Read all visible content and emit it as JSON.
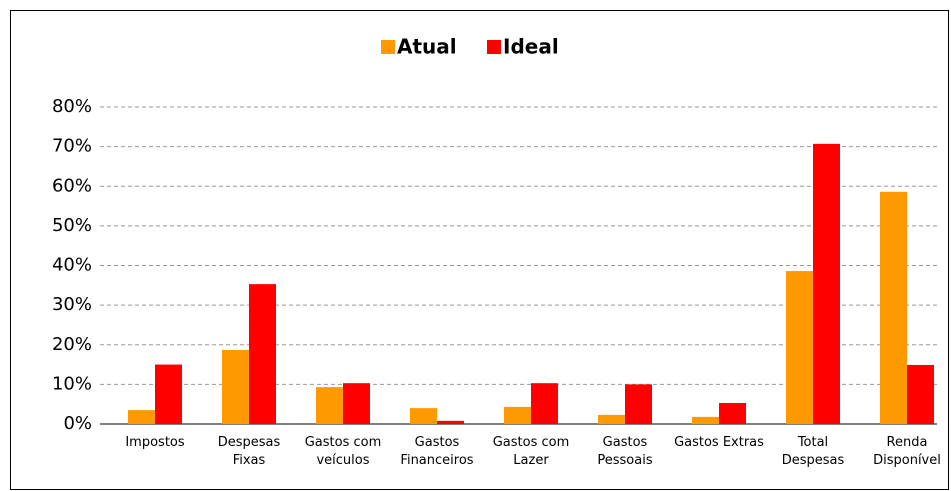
{
  "chart_data": {
    "type": "bar",
    "categories": [
      "Impostos",
      "Despesas Fixas",
      "Gastos com veículos",
      "Gastos Financeiros",
      "Gastos com Lazer",
      "Gastos Pessoais",
      "Gastos Extras",
      "Total Despesas",
      "Renda Disponível"
    ],
    "series": [
      {
        "name": "Atual",
        "color": "#ff9900",
        "values": [
          3.5,
          18.7,
          9.3,
          4,
          4.3,
          2.3,
          1.8,
          38.6,
          58.6
        ]
      },
      {
        "name": "Ideal",
        "color": "#ff0000",
        "values": [
          15,
          35.3,
          10.3,
          0.8,
          10.3,
          10,
          5.3,
          70.7,
          14.9
        ]
      }
    ],
    "ylim": [
      0,
      80
    ],
    "yticks": [
      {
        "value": 0,
        "label": "0%"
      },
      {
        "value": 10,
        "label": "10%"
      },
      {
        "value": 20,
        "label": "20%"
      },
      {
        "value": 30,
        "label": "30%"
      },
      {
        "value": 40,
        "label": "40%"
      },
      {
        "value": 50,
        "label": "50%"
      },
      {
        "value": 60,
        "label": "60%"
      },
      {
        "value": 70,
        "label": "70%"
      },
      {
        "value": 80,
        "label": "80%"
      }
    ],
    "grid": true,
    "legend": "top"
  }
}
